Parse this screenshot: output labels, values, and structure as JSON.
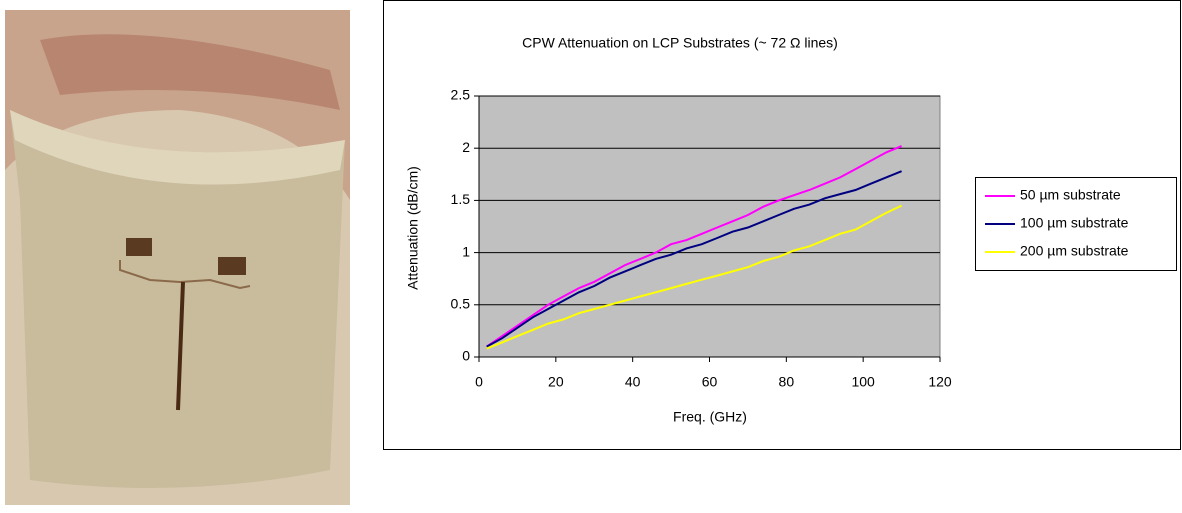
{
  "chart_data": {
    "type": "line",
    "title": "CPW Attenuation on LCP Substrates (~ 72 Ω lines)",
    "x_label": "Freq. (GHz)",
    "y_label": "Attenuation (dB/cm)",
    "x": [
      2,
      6,
      10,
      14,
      18,
      22,
      26,
      30,
      34,
      38,
      42,
      46,
      50,
      54,
      58,
      62,
      66,
      70,
      74,
      78,
      82,
      86,
      90,
      94,
      98,
      102,
      106,
      110
    ],
    "series": [
      {
        "name": "50 µm substrate",
        "color": "#ff00ff",
        "values": [
          0.1,
          0.2,
          0.3,
          0.4,
          0.5,
          0.58,
          0.66,
          0.72,
          0.8,
          0.88,
          0.94,
          1.0,
          1.08,
          1.12,
          1.18,
          1.24,
          1.3,
          1.36,
          1.44,
          1.5,
          1.55,
          1.6,
          1.66,
          1.72,
          1.8,
          1.88,
          1.96,
          2.02
        ]
      },
      {
        "name": "100 µm substrate",
        "color": "#000080",
        "values": [
          0.1,
          0.18,
          0.28,
          0.38,
          0.46,
          0.54,
          0.62,
          0.68,
          0.76,
          0.82,
          0.88,
          0.94,
          0.98,
          1.04,
          1.08,
          1.14,
          1.2,
          1.24,
          1.3,
          1.36,
          1.42,
          1.46,
          1.52,
          1.56,
          1.6,
          1.66,
          1.72,
          1.78
        ]
      },
      {
        "name": "200 µm substrate",
        "color": "#ffff00",
        "values": [
          0.08,
          0.14,
          0.2,
          0.26,
          0.32,
          0.36,
          0.42,
          0.46,
          0.5,
          0.54,
          0.58,
          0.62,
          0.66,
          0.7,
          0.74,
          0.78,
          0.82,
          0.86,
          0.92,
          0.96,
          1.02,
          1.06,
          1.12,
          1.18,
          1.22,
          1.3,
          1.38,
          1.45
        ]
      }
    ],
    "xlim": [
      0,
      120
    ],
    "xticks": [
      0,
      20,
      40,
      60,
      80,
      100,
      120
    ],
    "ylim": [
      0,
      2.5
    ],
    "yticks": [
      0,
      0.5,
      1,
      1.5,
      2,
      2.5
    ],
    "grid": true,
    "legend": "right",
    "plot_background": "#c0c0c0"
  }
}
